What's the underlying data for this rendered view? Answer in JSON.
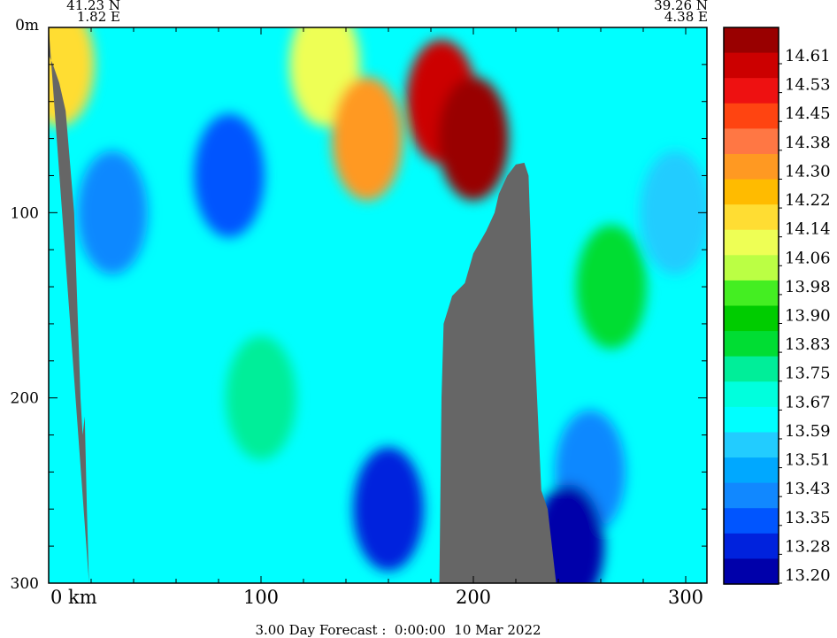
{
  "location": {
    "start_lat": "41.23 N",
    "start_lon": "1.82 E",
    "end_lat": "39.26 N",
    "end_lon": "4.38 E"
  },
  "forecast_caption": "3.00 Day Forecast :  0:00:00  10 Mar 2022",
  "colors": {
    "land": "#666666",
    "scale": [
      "#0000aa",
      "#0022dd",
      "#0055ff",
      "#1188ff",
      "#00a8ff",
      "#22ccff",
      "#00ffff",
      "#00ffdd",
      "#00ee99",
      "#00dd33",
      "#00cc00",
      "#44ee22",
      "#bbff44",
      "#eeff55",
      "#ffdd33",
      "#ffbb00",
      "#ff9922",
      "#ff7744",
      "#ff4411",
      "#ee1111",
      "#cc0000",
      "#990000"
    ]
  },
  "chart_data": {
    "type": "heatmap",
    "title": "",
    "xlabel": "km",
    "ylabel": "m",
    "xlim": [
      0,
      310
    ],
    "ylim": [
      300,
      0
    ],
    "x_ticks": [
      0,
      100,
      200,
      300
    ],
    "x_tick_labels": [
      "0  km",
      "100",
      "200",
      "300"
    ],
    "y_ticks": [
      0,
      100,
      200,
      300
    ],
    "y_tick_labels": [
      "0m",
      "100",
      "200",
      "300"
    ],
    "colorbar": {
      "labels": [
        "14.61",
        "14.53",
        "14.45",
        "14.38",
        "14.30",
        "14.22",
        "14.14",
        "14.06",
        "13.98",
        "13.90",
        "13.83",
        "13.75",
        "13.67",
        "13.59",
        "13.51",
        "13.43",
        "13.35",
        "13.28",
        "13.20"
      ]
    },
    "bathymetry_left": [
      [
        0,
        15
      ],
      [
        2,
        20
      ],
      [
        5,
        30
      ],
      [
        8,
        45
      ],
      [
        12,
        100
      ],
      [
        15,
        200
      ],
      [
        16,
        220
      ],
      [
        17,
        210
      ],
      [
        18,
        260
      ],
      [
        19,
        300
      ]
    ],
    "bathymetry_seamount": [
      [
        184,
        300
      ],
      [
        185,
        200
      ],
      [
        186,
        160
      ],
      [
        190,
        145
      ],
      [
        196,
        138
      ],
      [
        200,
        122
      ],
      [
        206,
        110
      ],
      [
        210,
        100
      ],
      [
        212,
        90
      ],
      [
        216,
        80
      ],
      [
        220,
        74
      ],
      [
        224,
        73
      ],
      [
        226,
        80
      ],
      [
        228,
        150
      ],
      [
        230,
        200
      ],
      [
        232,
        250
      ],
      [
        235,
        260
      ],
      [
        237,
        280
      ],
      [
        239,
        300
      ]
    ],
    "temperature_field_samples": [
      {
        "x": 5,
        "depth": 20,
        "value": 14.14
      },
      {
        "x": 30,
        "depth": 100,
        "value": 13.43
      },
      {
        "x": 85,
        "depth": 80,
        "value": 13.35
      },
      {
        "x": 100,
        "depth": 200,
        "value": 13.75
      },
      {
        "x": 130,
        "depth": 20,
        "value": 14.06
      },
      {
        "x": 150,
        "depth": 60,
        "value": 14.3
      },
      {
        "x": 185,
        "depth": 40,
        "value": 14.53
      },
      {
        "x": 200,
        "depth": 60,
        "value": 14.61
      },
      {
        "x": 160,
        "depth": 260,
        "value": 13.28
      },
      {
        "x": 255,
        "depth": 240,
        "value": 13.43
      },
      {
        "x": 265,
        "depth": 140,
        "value": 13.83
      },
      {
        "x": 295,
        "depth": 100,
        "value": 13.51
      },
      {
        "x": 245,
        "depth": 280,
        "value": 13.2
      }
    ]
  }
}
